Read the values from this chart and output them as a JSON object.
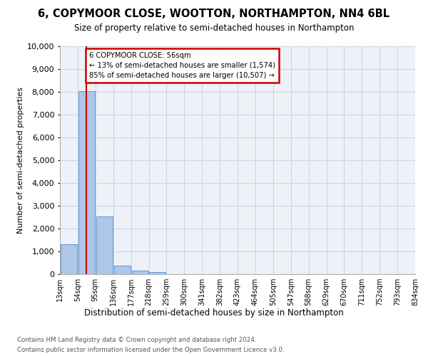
{
  "title": "6, COPYMOOR CLOSE, WOOTTON, NORTHAMPTON, NN4 6BL",
  "subtitle": "Size of property relative to semi-detached houses in Northampton",
  "xlabel": "Distribution of semi-detached houses by size in Northampton",
  "ylabel": "Number of semi-detached properties",
  "footer1": "Contains HM Land Registry data © Crown copyright and database right 2024.",
  "footer2": "Contains public sector information licensed under the Open Government Licence v3.0.",
  "property_label": "6 COPYMOOR CLOSE: 56sqm",
  "pct_smaller": 13,
  "pct_larger": 85,
  "n_smaller": 1574,
  "n_larger": 10507,
  "bin_labels": [
    "13sqm",
    "54sqm",
    "95sqm",
    "136sqm",
    "177sqm",
    "218sqm",
    "259sqm",
    "300sqm",
    "341sqm",
    "382sqm",
    "423sqm",
    "464sqm",
    "505sqm",
    "547sqm",
    "588sqm",
    "629sqm",
    "670sqm",
    "711sqm",
    "752sqm",
    "793sqm",
    "834sqm"
  ],
  "bar_values": [
    1320,
    8020,
    2520,
    390,
    150,
    100,
    0,
    0,
    0,
    0,
    0,
    0,
    0,
    0,
    0,
    0,
    0,
    0,
    0,
    0
  ],
  "bar_color": "#aec6e8",
  "bar_edge_color": "#5b9bd5",
  "grid_color": "#ccd5e0",
  "bg_color": "#eef2f8",
  "vline_color": "#cc0000",
  "annotation_box_fc": "#ffffff",
  "annotation_box_ec": "#cc0000",
  "ylim_max": 10000,
  "yticks": [
    0,
    1000,
    2000,
    3000,
    4000,
    5000,
    6000,
    7000,
    8000,
    9000,
    10000
  ],
  "vline_x_bin": 1.0
}
